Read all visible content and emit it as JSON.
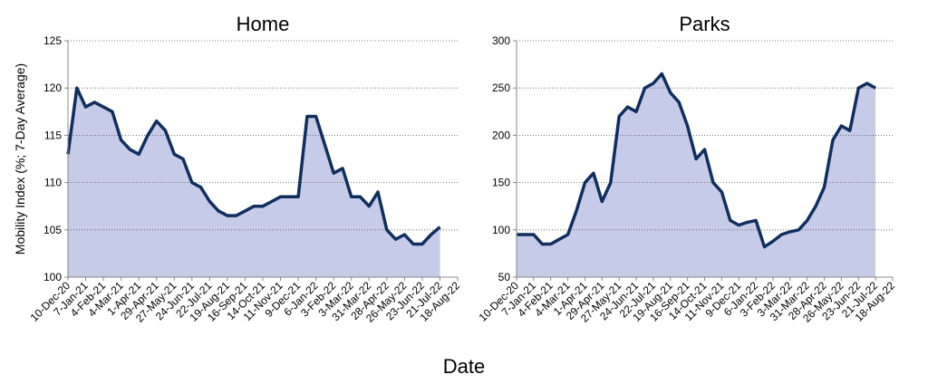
{
  "xlabel": "Date",
  "chart_data": [
    {
      "type": "area",
      "title": "Home",
      "ylabel": "Mobility Index (%; 7-Day Average)",
      "color": "#0f2f5f",
      "fill": "#c6cbe8",
      "grid": true,
      "x": [
        "2020-12-10",
        "2020-12-24",
        "2021-01-07",
        "2021-01-21",
        "2021-02-04",
        "2021-02-18",
        "2021-03-04",
        "2021-03-18",
        "2021-04-01",
        "2021-04-15",
        "2021-04-29",
        "2021-05-13",
        "2021-05-27",
        "2021-06-10",
        "2021-06-24",
        "2021-07-08",
        "2021-07-22",
        "2021-08-05",
        "2021-08-19",
        "2021-09-02",
        "2021-09-16",
        "2021-09-30",
        "2021-10-14",
        "2021-10-28",
        "2021-11-11",
        "2021-11-25",
        "2021-12-09",
        "2021-12-23",
        "2022-01-06",
        "2022-01-20",
        "2022-02-03",
        "2022-02-17",
        "2022-03-03",
        "2022-03-17",
        "2022-03-31",
        "2022-04-14",
        "2022-04-28",
        "2022-05-12",
        "2022-05-26",
        "2022-06-09",
        "2022-06-23",
        "2022-07-07",
        "2022-07-21"
      ],
      "values": [
        113,
        120,
        118,
        118.5,
        118,
        117.5,
        114.5,
        113.5,
        113,
        115,
        116.5,
        115.5,
        113,
        112.5,
        110,
        109.5,
        108,
        107,
        106.5,
        106.5,
        107,
        107.5,
        107.5,
        108,
        108.5,
        108.5,
        108.5,
        117,
        117,
        114,
        111,
        111.5,
        108.5,
        108.5,
        107.5,
        109,
        105,
        104,
        104.5,
        103.5,
        103.5,
        104.5,
        105.3
      ],
      "xlim": [
        "2020-12-10",
        "2022-08-18"
      ],
      "xticks": [
        {
          "value": "2020-12-10",
          "label": "10-Dec-20"
        },
        {
          "value": "2021-01-07",
          "label": "7-Jan-21"
        },
        {
          "value": "2021-02-04",
          "label": "4-Feb-21"
        },
        {
          "value": "2021-03-04",
          "label": "4-Mar-21"
        },
        {
          "value": "2021-04-01",
          "label": "1-Apr-21"
        },
        {
          "value": "2021-04-29",
          "label": "29-Apr-21"
        },
        {
          "value": "2021-05-27",
          "label": "27-May-21"
        },
        {
          "value": "2021-06-24",
          "label": "24-Jun-21"
        },
        {
          "value": "2021-07-22",
          "label": "22-Jul-21"
        },
        {
          "value": "2021-08-19",
          "label": "19-Aug-21"
        },
        {
          "value": "2021-09-16",
          "label": "16-Sep-21"
        },
        {
          "value": "2021-10-14",
          "label": "14-Oct-21"
        },
        {
          "value": "2021-11-11",
          "label": "11-Nov-21"
        },
        {
          "value": "2021-12-09",
          "label": "9-Dec-21"
        },
        {
          "value": "2022-01-06",
          "label": "6-Jan-22"
        },
        {
          "value": "2022-02-03",
          "label": "3-Feb-22"
        },
        {
          "value": "2022-03-03",
          "label": "3-Mar-22"
        },
        {
          "value": "2022-03-31",
          "label": "31-Mar-22"
        },
        {
          "value": "2022-04-28",
          "label": "28-Apr-22"
        },
        {
          "value": "2022-05-26",
          "label": "26-May-22"
        },
        {
          "value": "2022-06-23",
          "label": "23-Jun-22"
        },
        {
          "value": "2022-07-21",
          "label": "21-Jul-22"
        },
        {
          "value": "2022-08-18",
          "label": "18-Aug-22"
        }
      ],
      "ylim": [
        100,
        125
      ],
      "yticks": [
        100,
        105,
        110,
        115,
        120,
        125
      ]
    },
    {
      "type": "area",
      "title": "Parks",
      "color": "#0f2f5f",
      "fill": "#c6cbe8",
      "grid": true,
      "x": [
        "2020-12-10",
        "2020-12-24",
        "2021-01-07",
        "2021-01-21",
        "2021-02-04",
        "2021-02-18",
        "2021-03-04",
        "2021-03-18",
        "2021-04-01",
        "2021-04-15",
        "2021-04-29",
        "2021-05-13",
        "2021-05-27",
        "2021-06-10",
        "2021-06-24",
        "2021-07-08",
        "2021-07-22",
        "2021-08-05",
        "2021-08-19",
        "2021-09-02",
        "2021-09-16",
        "2021-09-30",
        "2021-10-14",
        "2021-10-28",
        "2021-11-11",
        "2021-11-25",
        "2021-12-09",
        "2021-12-23",
        "2022-01-06",
        "2022-01-20",
        "2022-02-03",
        "2022-02-17",
        "2022-03-03",
        "2022-03-17",
        "2022-03-31",
        "2022-04-14",
        "2022-04-28",
        "2022-05-12",
        "2022-05-26",
        "2022-06-09",
        "2022-06-23",
        "2022-07-07",
        "2022-07-21"
      ],
      "values": [
        95,
        95,
        95,
        85,
        85,
        90,
        95,
        120,
        150,
        160,
        130,
        150,
        220,
        230,
        225,
        250,
        255,
        265,
        245,
        235,
        210,
        175,
        185,
        150,
        140,
        110,
        105,
        108,
        110,
        82,
        88,
        95,
        98,
        100,
        110,
        125,
        145,
        195,
        210,
        205,
        250,
        255,
        250
      ],
      "xlim": [
        "2020-12-10",
        "2022-08-18"
      ],
      "xticks": [
        {
          "value": "2020-12-10",
          "label": "10-Dec-20"
        },
        {
          "value": "2021-01-07",
          "label": "7-Jan-21"
        },
        {
          "value": "2021-02-04",
          "label": "4-Feb-21"
        },
        {
          "value": "2021-03-04",
          "label": "4-Mar-21"
        },
        {
          "value": "2021-04-01",
          "label": "1-Apr-21"
        },
        {
          "value": "2021-04-29",
          "label": "29-Apr-21"
        },
        {
          "value": "2021-05-27",
          "label": "27-May-21"
        },
        {
          "value": "2021-06-24",
          "label": "24-Jun-21"
        },
        {
          "value": "2021-07-22",
          "label": "22-Jul-21"
        },
        {
          "value": "2021-08-19",
          "label": "19-Aug-21"
        },
        {
          "value": "2021-09-16",
          "label": "16-Sep-21"
        },
        {
          "value": "2021-10-14",
          "label": "14-Oct-21"
        },
        {
          "value": "2021-11-11",
          "label": "11-Nov-21"
        },
        {
          "value": "2021-12-09",
          "label": "9-Dec-21"
        },
        {
          "value": "2022-01-06",
          "label": "6-Jan-22"
        },
        {
          "value": "2022-02-03",
          "label": "3-Feb-22"
        },
        {
          "value": "2022-03-03",
          "label": "3-Mar-22"
        },
        {
          "value": "2022-03-31",
          "label": "31-Mar-22"
        },
        {
          "value": "2022-04-28",
          "label": "28-Apr-22"
        },
        {
          "value": "2022-05-26",
          "label": "26-May-22"
        },
        {
          "value": "2022-06-23",
          "label": "23-Jun-22"
        },
        {
          "value": "2022-07-21",
          "label": "21-Jul-22"
        },
        {
          "value": "2022-08-18",
          "label": "18-Aug-22"
        }
      ],
      "ylim": [
        50,
        300
      ],
      "yticks": [
        50,
        100,
        150,
        200,
        250,
        300
      ]
    }
  ]
}
